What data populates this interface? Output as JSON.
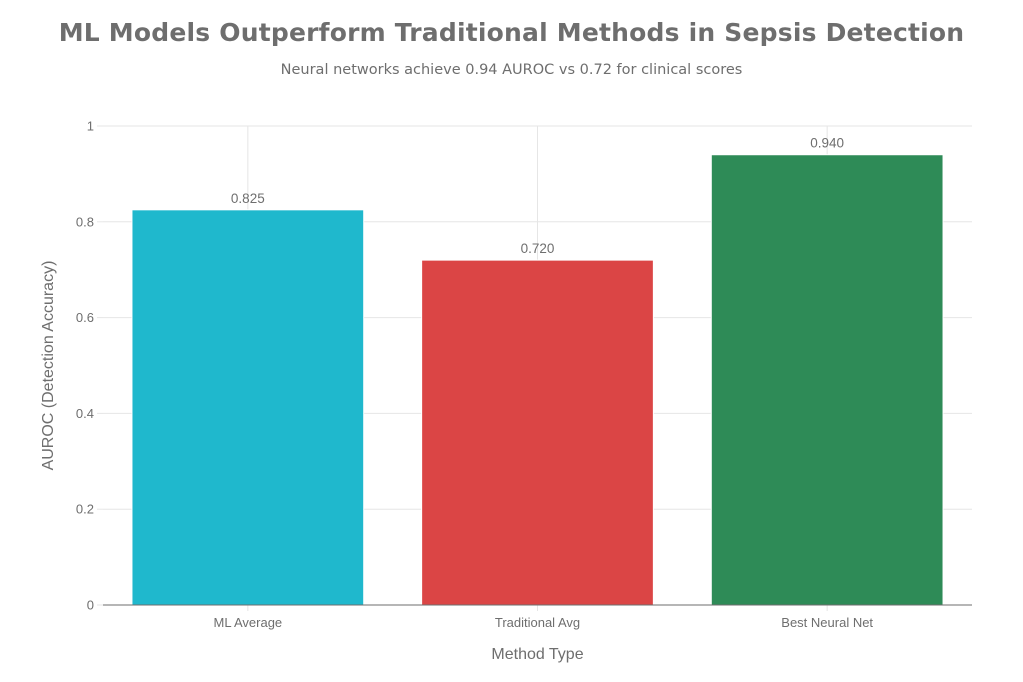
{
  "chart_data": {
    "type": "bar",
    "title": "ML Models Outperform Traditional Methods in Sepsis Detection",
    "subtitle": "Neural networks achieve 0.94 AUROC vs 0.72 for clinical scores",
    "xlabel": "Method Type",
    "ylabel": "AUROC (Detection Accuracy)",
    "categories": [
      "ML Average",
      "Traditional Avg",
      "Best Neural Net"
    ],
    "values": [
      0.825,
      0.72,
      0.94
    ],
    "value_labels": [
      "0.825",
      "0.720",
      "0.940"
    ],
    "colors": [
      "#1fb8cd",
      "#db4545",
      "#2e8b57"
    ],
    "ylim": [
      0,
      1
    ],
    "yticks": [
      0,
      0.2,
      0.4,
      0.6,
      0.8,
      1
    ],
    "ytick_labels": [
      "0",
      "0.2",
      "0.4",
      "0.6",
      "0.8",
      "1"
    ],
    "grid": true,
    "legend": "none"
  }
}
